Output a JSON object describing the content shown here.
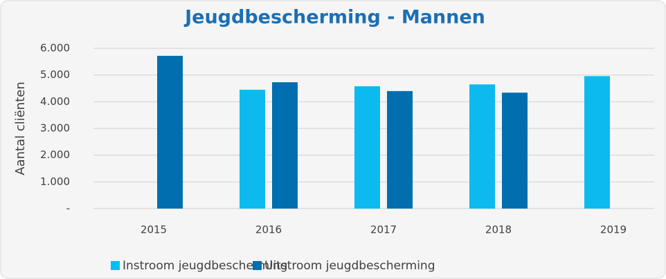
{
  "chart_data": {
    "type": "bar",
    "title": "Jeugdbescherming - Mannen",
    "ylabel": "Aantal cliënten",
    "categories": [
      "2015",
      "2016",
      "2017",
      "2018",
      "2019"
    ],
    "series": [
      {
        "name": "Instroom jeugdbescherming",
        "color": "#0dbaf0",
        "values": [
          null,
          4450,
          4580,
          4650,
          4960
        ]
      },
      {
        "name": "Uitstroom jeugdbescherming",
        "color": "#006eaf",
        "values": [
          5720,
          4730,
          4400,
          4340,
          null
        ]
      }
    ],
    "ylim": [
      0,
      6000
    ],
    "yticks": [
      {
        "value": 0,
        "label": "-"
      },
      {
        "value": 1000,
        "label": "1.000"
      },
      {
        "value": 2000,
        "label": "2.000"
      },
      {
        "value": 3000,
        "label": "3.000"
      },
      {
        "value": 4000,
        "label": "4.000"
      },
      {
        "value": 5000,
        "label": "5.000"
      },
      {
        "value": 6000,
        "label": "6.000"
      }
    ],
    "grid": true,
    "legend": "bottom"
  }
}
